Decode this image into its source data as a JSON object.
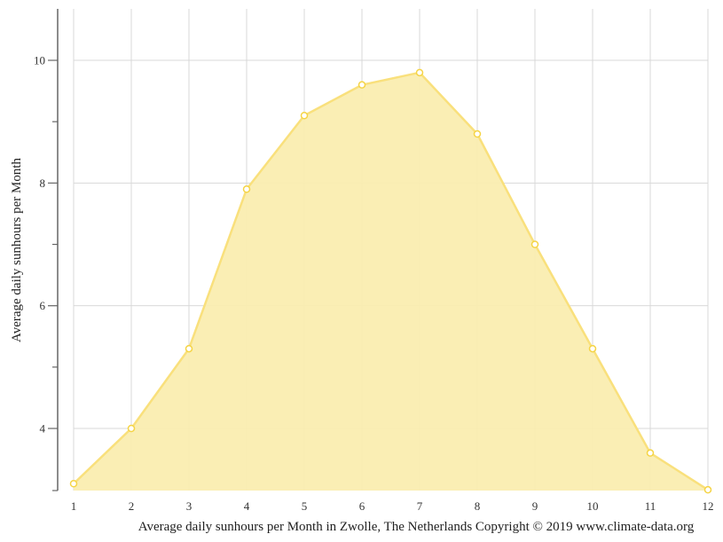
{
  "chart_data": {
    "type": "area",
    "title": "",
    "xlabel": "Average daily sunhours per Month in Zwolle, The Netherlands Copyright © 2019 www.climate-data.org",
    "ylabel": "Average daily sunhours per Month",
    "categories": [
      "1",
      "2",
      "3",
      "4",
      "5",
      "6",
      "7",
      "8",
      "9",
      "10",
      "11",
      "12"
    ],
    "series": [
      {
        "name": "Average daily sunhours",
        "values": [
          3.1,
          4.0,
          5.3,
          7.9,
          9.1,
          9.6,
          9.8,
          8.8,
          7.0,
          5.3,
          3.6,
          3.0
        ],
        "color": "#f7e07a",
        "fill": "#faedb0"
      }
    ],
    "ylim": [
      3,
      10.85
    ],
    "yticks_major": [
      4,
      6,
      8,
      10
    ],
    "yticks_minor": [
      3,
      5,
      7,
      9
    ],
    "grid": true,
    "legend": "none"
  },
  "colors": {
    "line": "#f9e07c",
    "fill": "#faedb0",
    "marker_stroke": "#f5d445",
    "grid": "#d9d9d9",
    "axis": "#666666"
  }
}
